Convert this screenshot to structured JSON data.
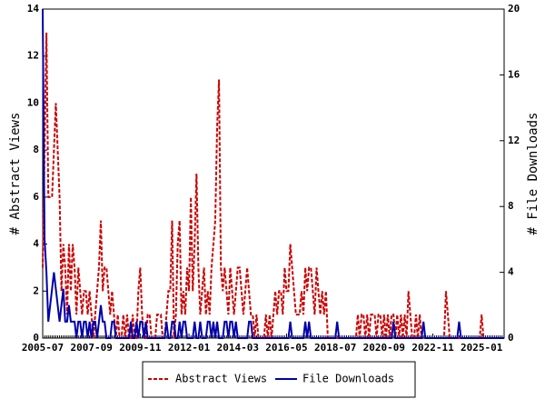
{
  "chart_data": {
    "type": "line",
    "y_label": "# Abstract Views",
    "y2_label": "# File Downloads",
    "categories": [
      "2005-07",
      null,
      null,
      null,
      null,
      null,
      null,
      null,
      null,
      null,
      null,
      null,
      null,
      null,
      null,
      null,
      null,
      null,
      null,
      null,
      null,
      null,
      null,
      null,
      null,
      null,
      "2007-09",
      null,
      null,
      null,
      null,
      null,
      null,
      null,
      null,
      null,
      null,
      null,
      null,
      null,
      null,
      null,
      null,
      null,
      null,
      null,
      null,
      null,
      null,
      null,
      null,
      null,
      "2009-11",
      null,
      null,
      null,
      null,
      null,
      null,
      null,
      null,
      null,
      null,
      null,
      null,
      null,
      null,
      null,
      null,
      null,
      null,
      null,
      null,
      null,
      null,
      null,
      null,
      null,
      "2012-01",
      null,
      null,
      null,
      null,
      null,
      null,
      null,
      null,
      null,
      null,
      null,
      null,
      null,
      null,
      null,
      null,
      null,
      null,
      null,
      null,
      null,
      null,
      null,
      null,
      null,
      "2014-03",
      null,
      null,
      null,
      null,
      null,
      null,
      null,
      null,
      null,
      null,
      null,
      null,
      null,
      null,
      null,
      null,
      null,
      null,
      null,
      null,
      null,
      null,
      null,
      null,
      null,
      "2016-05",
      null,
      null,
      null,
      null,
      null,
      null,
      null,
      null,
      null,
      null,
      null,
      null,
      null,
      null,
      null,
      null,
      null,
      null,
      null,
      null,
      null,
      null,
      null,
      null,
      null,
      "2018-07",
      null,
      null,
      null,
      null,
      null,
      null,
      null,
      null,
      null,
      null,
      null,
      null,
      null,
      null,
      null,
      null,
      null,
      null,
      null,
      null,
      null,
      null,
      null,
      null,
      null,
      "2020-09",
      null,
      null,
      null,
      null,
      null,
      null,
      null,
      null,
      null,
      null,
      null,
      null,
      null,
      null,
      null,
      null,
      null,
      null,
      null,
      null,
      null,
      null,
      null,
      null,
      null,
      "2022-11",
      null,
      null,
      null,
      null,
      null,
      null,
      null,
      null,
      null,
      null,
      null,
      null,
      null,
      null,
      null,
      null,
      null,
      null,
      null,
      null,
      null,
      null,
      null,
      null,
      null,
      "2025-01",
      null,
      null,
      null,
      null,
      null,
      null,
      null,
      null,
      null,
      null,
      null,
      null
    ],
    "series": [
      {
        "name": "Abstract Views",
        "color": "#cc0000",
        "dashed": true,
        "values": [
          3,
          8,
          13,
          6,
          6,
          6,
          8,
          10,
          8,
          6,
          2,
          4,
          3,
          1,
          4,
          2,
          4,
          3,
          1,
          3,
          2,
          1,
          2,
          2,
          1,
          2,
          1,
          0,
          1,
          2,
          3,
          5,
          2,
          3,
          3,
          2,
          1,
          2,
          1,
          0,
          1,
          0,
          0,
          1,
          0,
          1,
          0,
          0,
          1,
          0,
          0,
          2,
          3,
          1,
          0,
          0,
          1,
          1,
          0,
          0,
          0,
          1,
          1,
          1,
          0,
          0,
          1,
          2,
          2,
          5,
          0,
          1,
          4,
          5,
          1,
          2,
          1,
          3,
          2,
          6,
          2,
          4,
          7,
          3,
          1,
          2,
          3,
          1,
          2,
          1,
          3,
          4,
          5,
          9,
          11,
          3,
          2,
          3,
          2,
          1,
          3,
          2,
          1,
          2,
          3,
          3,
          2,
          1,
          2,
          3,
          2,
          1,
          1,
          0,
          1,
          0,
          0,
          0,
          0,
          1,
          0,
          1,
          0,
          1,
          2,
          1,
          2,
          2,
          1,
          3,
          2,
          2,
          4,
          3,
          2,
          1,
          1,
          1,
          2,
          1,
          3,
          2,
          3,
          3,
          2,
          1,
          3,
          2,
          1,
          2,
          1,
          2,
          0,
          0,
          0,
          0,
          0,
          0,
          0,
          0,
          0,
          0,
          0,
          0,
          0,
          0,
          0,
          0,
          1,
          0,
          1,
          1,
          0,
          1,
          0,
          1,
          1,
          1,
          0,
          1,
          1,
          0,
          1,
          0,
          1,
          0,
          1,
          1,
          0,
          1,
          0,
          1,
          0,
          1,
          0,
          2,
          1,
          0,
          0,
          1,
          0,
          1,
          0,
          0,
          0,
          0,
          0,
          0,
          0,
          0,
          0,
          0,
          0,
          0,
          0,
          2,
          1,
          0,
          0,
          0,
          0,
          0,
          0,
          0,
          0,
          0,
          0,
          0,
          0,
          0,
          0,
          0,
          0,
          0,
          1,
          0,
          0,
          0,
          0,
          0,
          0,
          0,
          0,
          0,
          0,
          0,
          0
        ]
      },
      {
        "name": "File Downloads",
        "color": "#0000aa",
        "axis": "y2",
        "values": [
          20,
          6,
          4,
          1,
          2,
          3,
          4,
          3,
          2,
          1,
          2,
          3,
          1,
          1,
          2,
          1,
          1,
          1,
          0,
          1,
          1,
          0,
          1,
          1,
          0,
          1,
          0,
          1,
          1,
          0,
          1,
          2,
          1,
          1,
          0,
          0,
          0,
          1,
          1,
          0,
          0,
          0,
          0,
          0,
          0,
          0,
          0,
          1,
          0,
          0,
          1,
          0,
          1,
          1,
          0,
          1,
          0,
          0,
          0,
          0,
          0,
          0,
          0,
          0,
          0,
          0,
          1,
          0,
          0,
          1,
          1,
          0,
          0,
          1,
          0,
          1,
          1,
          0,
          0,
          0,
          0,
          1,
          0,
          0,
          1,
          0,
          0,
          0,
          1,
          1,
          0,
          1,
          0,
          1,
          0,
          0,
          0,
          1,
          1,
          0,
          1,
          1,
          0,
          1,
          0,
          0,
          0,
          0,
          0,
          0,
          1,
          1,
          0,
          0,
          0,
          0,
          0,
          0,
          0,
          0,
          0,
          0,
          0,
          0,
          0,
          0,
          0,
          0,
          0,
          0,
          0,
          0,
          1,
          0,
          0,
          0,
          0,
          0,
          0,
          0,
          1,
          0,
          1,
          0,
          0,
          0,
          0,
          0,
          0,
          0,
          0,
          0,
          0,
          0,
          0,
          0,
          0,
          1,
          0,
          0,
          0,
          0,
          0,
          0,
          0,
          0,
          0,
          0,
          0,
          0,
          0,
          0,
          0,
          0,
          0,
          0,
          0,
          0,
          0,
          0,
          0,
          0,
          0,
          0,
          0,
          0,
          0,
          1,
          0,
          0,
          0,
          0,
          0,
          0,
          0,
          0,
          0,
          0,
          0,
          0,
          0,
          0,
          0,
          1,
          0,
          0,
          0,
          0,
          0,
          0,
          0,
          0,
          0,
          0,
          0,
          0,
          0,
          0,
          0,
          0,
          0,
          0,
          1,
          0,
          0,
          0,
          0,
          0,
          0,
          0,
          0,
          0,
          0,
          0,
          0,
          0,
          0,
          0,
          0,
          0,
          0,
          0,
          0,
          0,
          0,
          0,
          0
        ]
      }
    ],
    "ylim": [
      0,
      14
    ],
    "yticks": [
      0,
      2,
      4,
      6,
      8,
      10,
      12,
      14
    ],
    "y2lim": [
      0,
      20
    ],
    "y2ticks": [
      0,
      4,
      8,
      12,
      16,
      20
    ],
    "legend": "bottom"
  }
}
